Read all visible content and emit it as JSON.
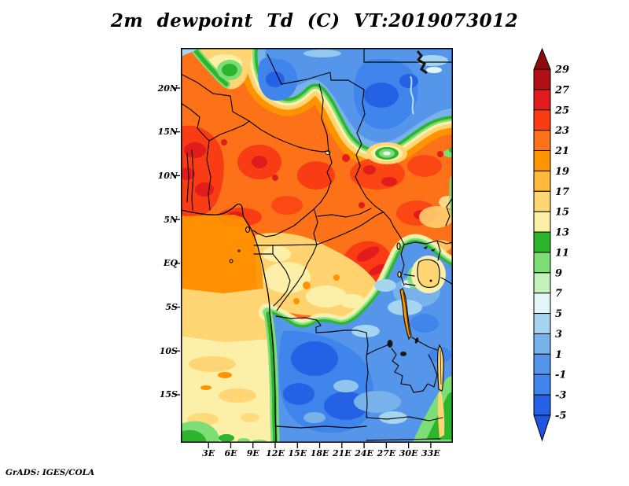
{
  "title": "2m dewpoint Td (C) VT:2019073012",
  "footer": "GrADS: IGES/COLA",
  "axes": {
    "lat_labels": [
      "20N",
      "15N",
      "10N",
      "5N",
      "EQ",
      "5S",
      "10S",
      "15S"
    ],
    "lon_labels": [
      "3E",
      "6E",
      "9E",
      "12E",
      "15E",
      "18E",
      "21E",
      "24E",
      "27E",
      "30E",
      "33E"
    ]
  },
  "colorbar": {
    "tick_labels": [
      "29",
      "27",
      "25",
      "23",
      "21",
      "19",
      "17",
      "15",
      "13",
      "11",
      "9",
      "7",
      "5",
      "3",
      "1",
      "-1",
      "-3",
      "-5"
    ],
    "band_colors_top_to_bottom": [
      "#8f0a0a",
      "#b01016",
      "#e21c1c",
      "#fa3c14",
      "#fd7218",
      "#ff9400",
      "#ffba3c",
      "#ffd673",
      "#fcf0a8",
      "#2eb52e",
      "#7ede76",
      "#c4f0ba",
      "#e2f6f8",
      "#a5d5f0",
      "#77b3ea",
      "#5596ea",
      "#3f85ec",
      "#2561e4",
      "#1e55dc"
    ]
  },
  "field": {
    "variable": "2m dewpoint",
    "units": "C",
    "valid_time": "2019073012",
    "contour_min": -5,
    "contour_max": 29,
    "contour_interval": 2
  }
}
